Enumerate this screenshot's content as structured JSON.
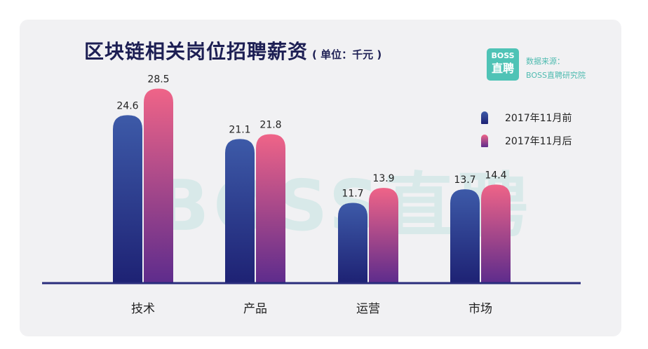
{
  "chart_data": {
    "type": "bar",
    "title": "区块链相关岗位招聘薪资",
    "subtitle": "( 单位：千元 )",
    "categories": [
      "技术",
      "产品",
      "运营",
      "市场"
    ],
    "series": [
      {
        "name": "2017年11月前",
        "values": [
          24.6,
          21.1,
          11.7,
          13.7
        ],
        "color_top": "#3d5aa8",
        "color_bottom": "#1e2274"
      },
      {
        "name": "2017年11月后",
        "values": [
          28.5,
          21.8,
          13.9,
          14.4
        ],
        "color_top": "#ef6488",
        "color_bottom": "#5e2c8c"
      }
    ],
    "ylim": [
      0,
      30
    ],
    "grid": false,
    "legend_position": "right"
  },
  "source": {
    "logo_line1": "BOSS",
    "logo_line2": "直聘",
    "label_line1": "数据来源：",
    "label_line2": "BOSS直聘研究院"
  },
  "watermark": "BOSS直聘",
  "colors": {
    "card_bg": "#f1f1f3",
    "title": "#1d1f54",
    "brand_teal": "#4fc3b6",
    "axis": "#2a2d7c"
  }
}
